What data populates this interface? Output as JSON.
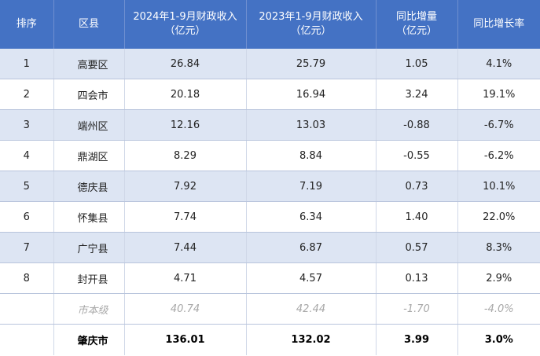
{
  "header": {
    "rank": "排序",
    "district": "区县",
    "rev2024_line1": "2024年1-9月财政收入",
    "rev2024_line2": "（亿元）",
    "rev2023_line1": "2023年1-9月财政收入",
    "rev2023_line2": "（亿元）",
    "change_line1": "同比增量",
    "change_line2": "（亿元）",
    "growth": "同比增长率"
  },
  "rows": [
    {
      "rank": "1",
      "district": "高要区",
      "rev2024": "26.84",
      "rev2023": "25.79",
      "change": "1.05",
      "growth": "4.1%"
    },
    {
      "rank": "2",
      "district": "四会市",
      "rev2024": "20.18",
      "rev2023": "16.94",
      "change": "3.24",
      "growth": "19.1%"
    },
    {
      "rank": "3",
      "district": "端州区",
      "rev2024": "12.16",
      "rev2023": "13.03",
      "change": "-0.88",
      "growth": "-6.7%"
    },
    {
      "rank": "4",
      "district": "鼎湖区",
      "rev2024": "8.29",
      "rev2023": "8.84",
      "change": "-0.55",
      "growth": "-6.2%"
    },
    {
      "rank": "5",
      "district": "德庆县",
      "rev2024": "7.92",
      "rev2023": "7.19",
      "change": "0.73",
      "growth": "10.1%"
    },
    {
      "rank": "6",
      "district": "怀集县",
      "rev2024": "7.74",
      "rev2023": "6.34",
      "change": "1.40",
      "growth": "22.0%"
    },
    {
      "rank": "7",
      "district": "广宁县",
      "rev2024": "7.44",
      "rev2023": "6.87",
      "change": "0.57",
      "growth": "8.3%"
    },
    {
      "rank": "8",
      "district": "封开县",
      "rev2024": "4.71",
      "rev2023": "4.57",
      "change": "0.13",
      "growth": "2.9%"
    }
  ],
  "city_level": {
    "district": "市本级",
    "rev2024": "40.74",
    "rev2023": "42.44",
    "change": "-1.70",
    "growth": "-4.0%"
  },
  "total": {
    "district": "肇庆市",
    "rev2024": "136.01",
    "rev2023": "132.02",
    "change": "3.99",
    "growth": "3.0%"
  },
  "colors": {
    "header_bg": "#4472c4",
    "stripe": "#dde5f3",
    "muted_text": "#a8a8a8"
  }
}
